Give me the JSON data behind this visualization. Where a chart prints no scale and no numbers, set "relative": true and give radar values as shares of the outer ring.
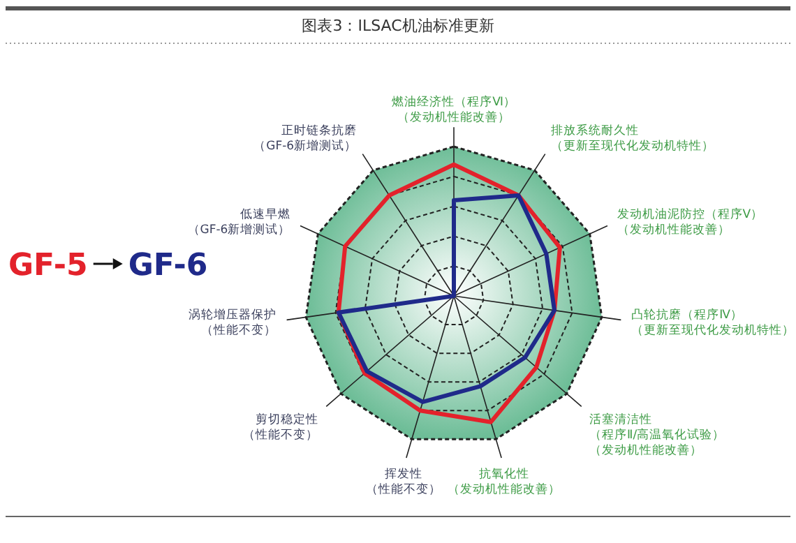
{
  "chart_data": {
    "type": "radar",
    "title": "图表3：ILSAC机油标准更新",
    "relative": true,
    "grid": true,
    "legend": "left",
    "categories": [
      "燃油经济性（程序Ⅵ）（发动机性能改善）",
      "排放系统耐久性（更新至现代化发动机特性）",
      "发动机油泥防控（程序Ⅴ）（发动机性能改善）",
      "凸轮抗磨（程序Ⅳ）（更新至现代化发动机特性）",
      "活塞清洁性（程序Ⅱ/高温氧化试验）（发动机性能改善）",
      "抗氧化性（发动机性能改善）",
      "挥发性（性能不变）",
      "剪切稳定性（性能不变）",
      "涡轮增压器保护（性能不变）",
      "低速早燃（GF-6新增测试）",
      "正时链条抗磨（GF-6新增测试）"
    ],
    "series": [
      {
        "name": "GF-5",
        "color": "#e3222b",
        "values": [
          0.88,
          0.8,
          0.78,
          0.68,
          0.73,
          0.88,
          0.8,
          0.79,
          0.78,
          0.8,
          0.8
        ]
      },
      {
        "name": "GF-6",
        "color": "#1f2a8a",
        "values": [
          0.64,
          0.8,
          0.68,
          0.68,
          0.63,
          0.63,
          0.74,
          0.77,
          0.78,
          0,
          0
        ]
      }
    ]
  }
}
